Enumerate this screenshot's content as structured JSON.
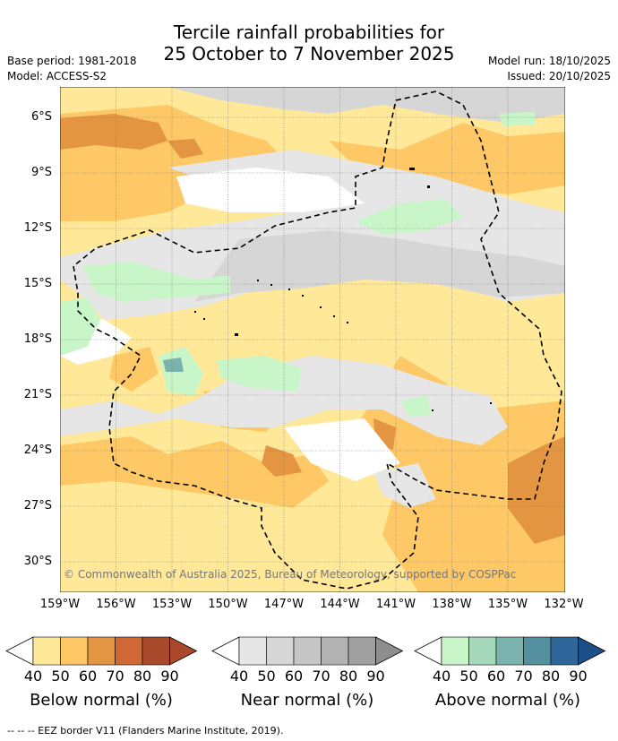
{
  "header": {
    "title_line1": "Tercile rainfall probabilities for",
    "title_line2": "25 October to 7 November 2025",
    "base_period": "Base period: 1981-2018",
    "model": "Model: ACCESS-S2",
    "model_run": "Model run: 18/10/2025",
    "issued": "Issued: 20/10/2025"
  },
  "map": {
    "lat_labels": [
      "6°S",
      "9°S",
      "12°S",
      "15°S",
      "18°S",
      "21°S",
      "24°S",
      "27°S",
      "30°S"
    ],
    "lon_labels": [
      "159°W",
      "156°W",
      "153°W",
      "150°W",
      "147°W",
      "144°W",
      "141°W",
      "138°W",
      "135°W",
      "132°W"
    ],
    "copyright": "© Commonwealth of Australia 2025, Bureau of Meteorology, supported by COSPPac"
  },
  "legend": {
    "below": {
      "title": "Below normal (%)",
      "ticks": [
        "40",
        "50",
        "60",
        "70",
        "80",
        "90"
      ],
      "colors": [
        "#ffe999",
        "#fdc865",
        "#e39541",
        "#cf6834",
        "#a9482a",
        "#a9482a"
      ]
    },
    "near": {
      "title": "Near normal (%)",
      "ticks": [
        "40",
        "50",
        "60",
        "70",
        "80",
        "90"
      ],
      "colors": [
        "#e6e6e6",
        "#d6d6d6",
        "#c6c6c6",
        "#b3b3b3",
        "#a0a0a0",
        "#8e8e8e"
      ]
    },
    "above": {
      "title": "Above normal (%)",
      "ticks": [
        "40",
        "50",
        "60",
        "70",
        "80",
        "90"
      ],
      "colors": [
        "#c8f6c8",
        "#a6d8bc",
        "#7ab3ad",
        "#55909e",
        "#2e6699",
        "#1a4f88"
      ]
    }
  },
  "footer": {
    "eez_note": "--  --  -- EEZ border V11 (Flanders Marine Institute, 2019)."
  },
  "colors": {
    "below40": "#ffe999",
    "below50": "#fdc865",
    "below60": "#e39541",
    "near40": "#e6e6e6",
    "near50": "#d6d6d6",
    "above40": "#c8f6c8",
    "above60": "#7ab3ad"
  }
}
